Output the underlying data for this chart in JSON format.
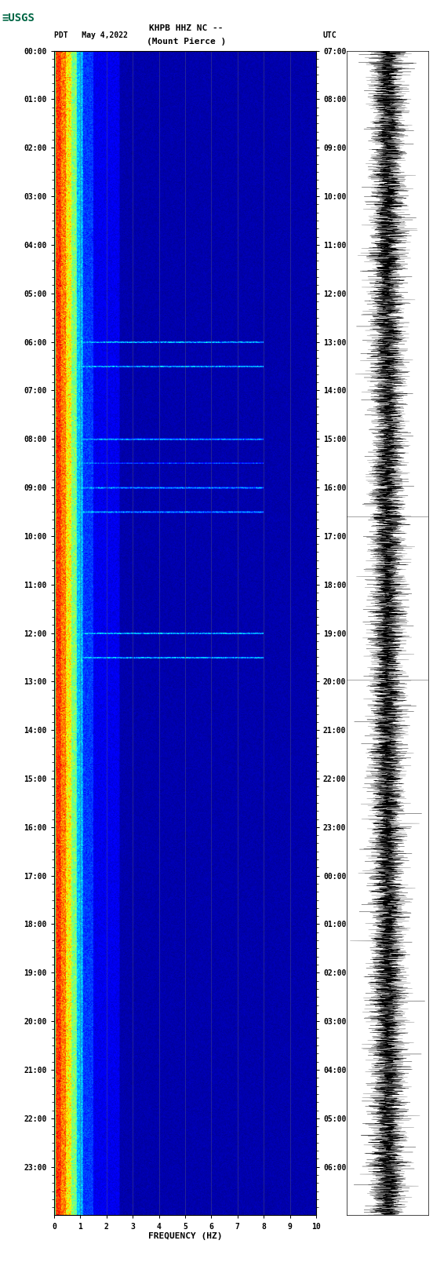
{
  "title_line1": "KHPB HHZ NC --",
  "title_line2": "(Mount Pierce )",
  "date_label": "PDT   May 4,2022",
  "utc_label": "UTC",
  "xlabel": "FREQUENCY (HZ)",
  "left_time_labels": [
    "00:00",
    "01:00",
    "02:00",
    "03:00",
    "04:00",
    "05:00",
    "06:00",
    "07:00",
    "08:00",
    "09:00",
    "10:00",
    "11:00",
    "12:00",
    "13:00",
    "14:00",
    "15:00",
    "16:00",
    "17:00",
    "18:00",
    "19:00",
    "20:00",
    "21:00",
    "22:00",
    "23:00"
  ],
  "right_time_labels": [
    "07:00",
    "08:00",
    "09:00",
    "10:00",
    "11:00",
    "12:00",
    "13:00",
    "14:00",
    "15:00",
    "16:00",
    "17:00",
    "18:00",
    "19:00",
    "20:00",
    "21:00",
    "22:00",
    "23:00",
    "00:00",
    "01:00",
    "02:00",
    "03:00",
    "04:00",
    "05:00",
    "06:00"
  ],
  "x_ticks": [
    0,
    1,
    2,
    3,
    4,
    5,
    6,
    7,
    8,
    9,
    10
  ],
  "freq_max": 10.0,
  "freq_min": 0.0,
  "bg_color": "#000080",
  "colormap": "jet",
  "waveform_color": "#000000",
  "plot_bg": "#ffffff",
  "grid_color": "#555577",
  "grid_alpha": 0.6,
  "n_time_steps": 1440,
  "n_freq_steps": 500,
  "font_size_labels": 7,
  "font_size_title": 8,
  "font_size_ticks": 7,
  "logo_color": "#006644",
  "event_rows": [
    360,
    390,
    480,
    510,
    540,
    570,
    720,
    750
  ],
  "event_row_freqs": [
    0.5,
    8.0
  ]
}
